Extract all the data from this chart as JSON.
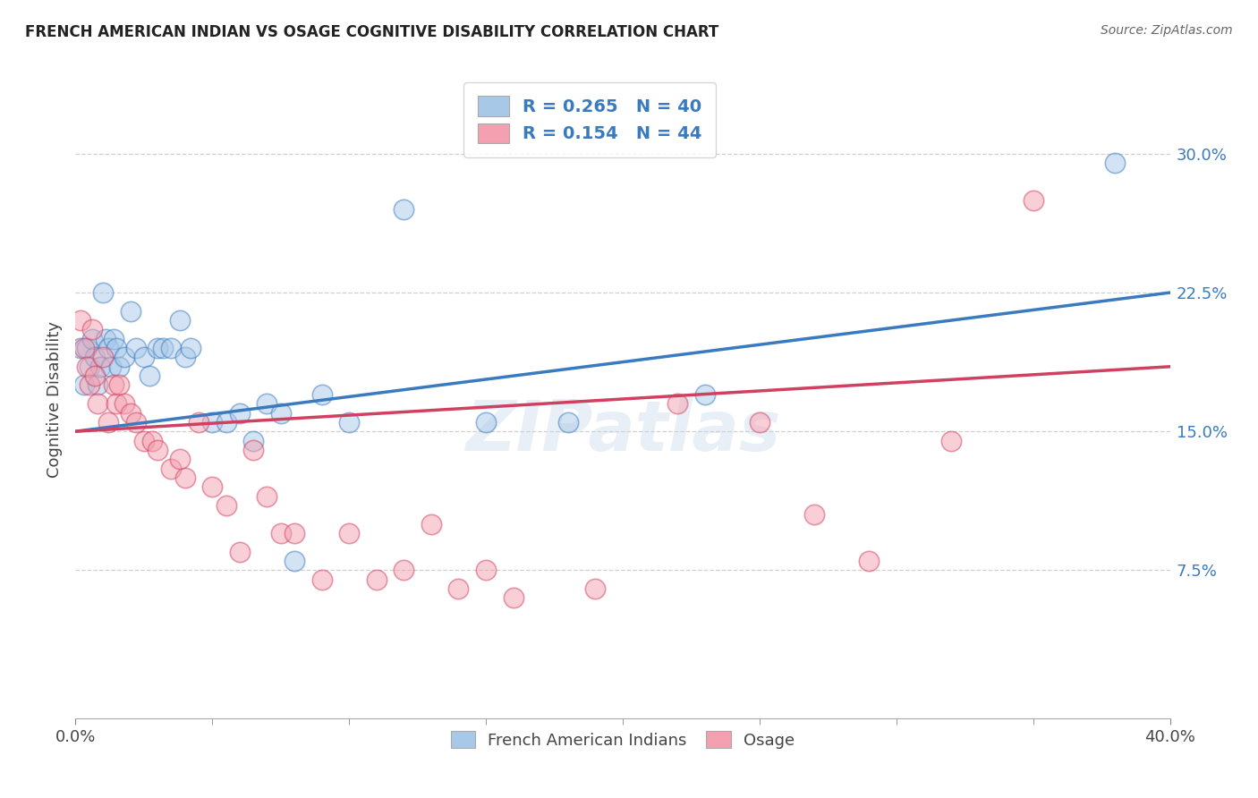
{
  "title": "FRENCH AMERICAN INDIAN VS OSAGE COGNITIVE DISABILITY CORRELATION CHART",
  "source": "Source: ZipAtlas.com",
  "ylabel": "Cognitive Disability",
  "ytick_labels": [
    "7.5%",
    "15.0%",
    "22.5%",
    "30.0%"
  ],
  "ytick_values": [
    0.075,
    0.15,
    0.225,
    0.3
  ],
  "xlim": [
    0.0,
    0.4
  ],
  "ylim": [
    -0.005,
    0.34
  ],
  "legend_blue_r": "0.265",
  "legend_blue_n": "40",
  "legend_pink_r": "0.154",
  "legend_pink_n": "44",
  "legend_label_blue": "French American Indians",
  "legend_label_pink": "Osage",
  "blue_color": "#a8c8e8",
  "pink_color": "#f4a0b0",
  "blue_line_color": "#3a7abf",
  "pink_line_color": "#d04060",
  "blue_x": [
    0.002,
    0.003,
    0.004,
    0.005,
    0.006,
    0.007,
    0.008,
    0.009,
    0.01,
    0.011,
    0.012,
    0.013,
    0.014,
    0.015,
    0.016,
    0.018,
    0.02,
    0.022,
    0.025,
    0.027,
    0.03,
    0.032,
    0.035,
    0.038,
    0.04,
    0.042,
    0.05,
    0.055,
    0.06,
    0.065,
    0.07,
    0.075,
    0.08,
    0.09,
    0.1,
    0.12,
    0.15,
    0.18,
    0.23,
    0.38
  ],
  "blue_y": [
    0.195,
    0.175,
    0.195,
    0.185,
    0.2,
    0.19,
    0.175,
    0.185,
    0.225,
    0.2,
    0.195,
    0.185,
    0.2,
    0.195,
    0.185,
    0.19,
    0.215,
    0.195,
    0.19,
    0.18,
    0.195,
    0.195,
    0.195,
    0.21,
    0.19,
    0.195,
    0.155,
    0.155,
    0.16,
    0.145,
    0.165,
    0.16,
    0.08,
    0.17,
    0.155,
    0.27,
    0.155,
    0.155,
    0.17,
    0.295
  ],
  "pink_x": [
    0.002,
    0.003,
    0.004,
    0.005,
    0.006,
    0.007,
    0.008,
    0.01,
    0.012,
    0.014,
    0.015,
    0.016,
    0.018,
    0.02,
    0.022,
    0.025,
    0.028,
    0.03,
    0.035,
    0.038,
    0.04,
    0.045,
    0.05,
    0.055,
    0.06,
    0.065,
    0.07,
    0.075,
    0.08,
    0.09,
    0.1,
    0.11,
    0.12,
    0.13,
    0.14,
    0.15,
    0.16,
    0.19,
    0.22,
    0.25,
    0.27,
    0.29,
    0.32,
    0.35
  ],
  "pink_y": [
    0.21,
    0.195,
    0.185,
    0.175,
    0.205,
    0.18,
    0.165,
    0.19,
    0.155,
    0.175,
    0.165,
    0.175,
    0.165,
    0.16,
    0.155,
    0.145,
    0.145,
    0.14,
    0.13,
    0.135,
    0.125,
    0.155,
    0.12,
    0.11,
    0.085,
    0.14,
    0.115,
    0.095,
    0.095,
    0.07,
    0.095,
    0.07,
    0.075,
    0.1,
    0.065,
    0.075,
    0.06,
    0.065,
    0.165,
    0.155,
    0.105,
    0.08,
    0.145,
    0.275
  ],
  "watermark": "ZIPatlas",
  "background_color": "#ffffff",
  "grid_color": "#d0d0d0"
}
